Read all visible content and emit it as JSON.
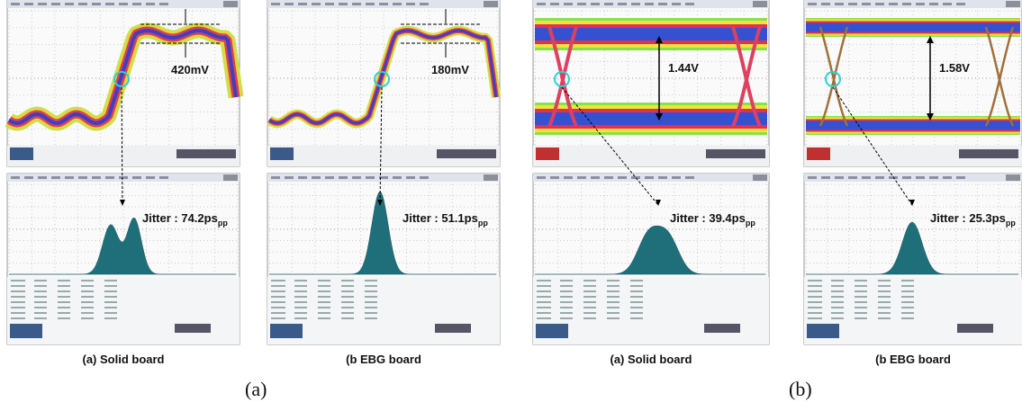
{
  "panels": [
    {
      "amplitude": "420mV",
      "jitter": "Jitter : 74.2ps",
      "jitter_sub": "pp",
      "caption": "(a) Solid board"
    },
    {
      "amplitude": "180mV",
      "jitter": "Jitter : 51.1ps",
      "jitter_sub": "pp",
      "caption": "(b EBG board"
    },
    {
      "amplitude": "1.44V",
      "jitter": "Jitter : 39.4ps",
      "jitter_sub": "pp",
      "caption": "(a) Solid board"
    },
    {
      "amplitude": "1.58V",
      "jitter": "Jitter : 25.3ps",
      "jitter_sub": "pp",
      "caption": "(b EBG board"
    }
  ],
  "group_labels": [
    "(a)",
    "(b)"
  ]
}
